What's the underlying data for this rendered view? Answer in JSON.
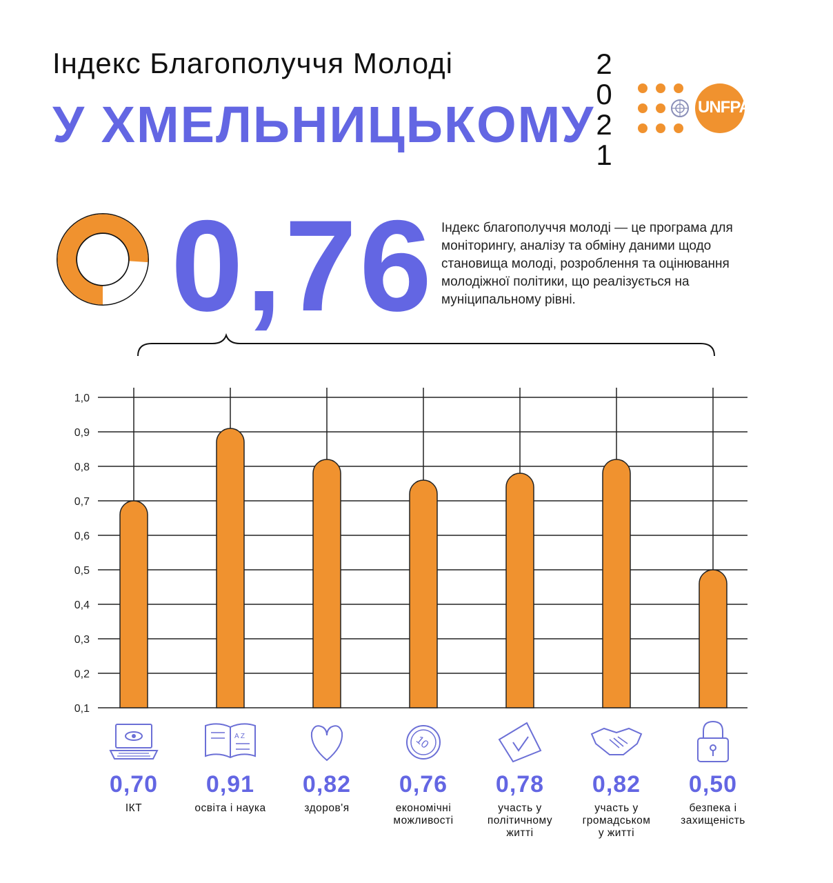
{
  "header": {
    "subtitle": "Індекс Благополуччя Молоді",
    "city": "У ХМЕЛЬНИЦЬКОМУ",
    "year_digits": [
      "2",
      "0",
      "2",
      "1"
    ],
    "logo_text": "UNFPA"
  },
  "summary": {
    "value": "0,76",
    "index_value": 0.76,
    "description": "Індекс благополуччя молоді — це програма для моніторингу, аналізу та обміну даними щодо становища молоді, розроблення та оцінювання молодіжної політики, що реалізується на муніципальному рівні."
  },
  "colors": {
    "accent": "#6366e3",
    "bar": "#f0922f",
    "grid": "#222222"
  },
  "chart_data": {
    "type": "bar",
    "categories": [
      "ІКТ",
      "освіта і наука",
      "здоров'я",
      "економічні\nможливості",
      "участь у\nполітичному\nжитті",
      "участь у\nгромадськом\nу житті",
      "безпека і\nзахищеність"
    ],
    "values": [
      0.7,
      0.91,
      0.82,
      0.76,
      0.78,
      0.82,
      0.5
    ],
    "value_labels": [
      "0,70",
      "0,91",
      "0,82",
      "0,76",
      "0,78",
      "0,82",
      "0,50"
    ],
    "ylim": [
      0.1,
      1.0
    ],
    "yticks": [
      "0,1",
      "0,2",
      "0,3",
      "0,4",
      "0,5",
      "0,6",
      "0,7",
      "0,8",
      "0,9",
      "1,0"
    ],
    "grid": true,
    "icons": [
      "laptop-icon",
      "book-icon",
      "heart-icon",
      "coin-icon",
      "ballot-icon",
      "handshake-icon",
      "padlock-icon"
    ]
  }
}
